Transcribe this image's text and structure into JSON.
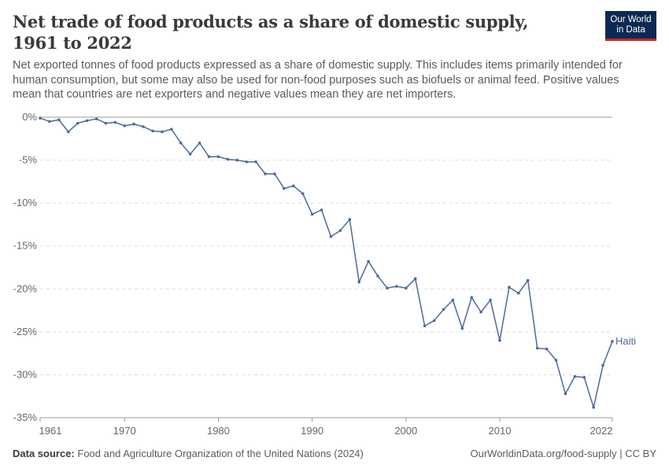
{
  "header": {
    "title": "Net trade of food products as a share of domestic supply, 1961 to 2022",
    "subtitle": "Net exported tonnes of food products expressed as a share of domestic supply. This includes items primarily intended for human consumption, but some may also be used for non-food purposes such as biofuels or animal feed. Positive values mean that countries are net exporters and negative values mean they are net importers.",
    "logo_line1": "Our World",
    "logo_line2": "in Data"
  },
  "footer": {
    "source_label": "Data source:",
    "source_text": "Food and Agriculture Organization of the United Nations (2024)",
    "right_text": "OurWorldinData.org/food-supply | CC BY"
  },
  "colors": {
    "series": "#4c6a9c",
    "logo_bg": "#0b2a53",
    "logo_bar": "#ce261e"
  },
  "chart_data": {
    "type": "line",
    "title": "Net trade of food products as a share of domestic supply, 1961 to 2022",
    "xlabel": "",
    "ylabel": "",
    "xlim": [
      1961,
      2022
    ],
    "ylim": [
      -35,
      0
    ],
    "x_ticks": [
      1961,
      1970,
      1980,
      1990,
      2000,
      2010,
      2022
    ],
    "y_ticks": [
      0,
      -5,
      -10,
      -15,
      -20,
      -25,
      -30,
      -35
    ],
    "y_tick_labels": [
      "0%",
      "-5%",
      "-10%",
      "-15%",
      "-20%",
      "-25%",
      "-30%",
      "-35%"
    ],
    "grid": "horizontal dashed",
    "series": [
      {
        "name": "Haiti",
        "x": [
          1961,
          1962,
          1963,
          1964,
          1965,
          1966,
          1967,
          1968,
          1969,
          1970,
          1971,
          1972,
          1973,
          1974,
          1975,
          1976,
          1977,
          1978,
          1979,
          1980,
          1981,
          1982,
          1983,
          1984,
          1985,
          1986,
          1987,
          1988,
          1989,
          1990,
          1991,
          1992,
          1993,
          1994,
          1995,
          1996,
          1997,
          1998,
          1999,
          2000,
          2001,
          2002,
          2003,
          2004,
          2005,
          2006,
          2007,
          2008,
          2009,
          2010,
          2011,
          2012,
          2013,
          2014,
          2015,
          2016,
          2017,
          2018,
          2019,
          2020,
          2021,
          2022
        ],
        "values": [
          -0.1,
          -0.5,
          -0.3,
          -1.7,
          -0.7,
          -0.4,
          -0.2,
          -0.7,
          -0.6,
          -1.0,
          -0.8,
          -1.1,
          -1.6,
          -1.7,
          -1.4,
          -3.0,
          -4.3,
          -3.0,
          -4.6,
          -4.6,
          -4.9,
          -5.0,
          -5.2,
          -5.2,
          -6.6,
          -6.6,
          -8.3,
          -8.0,
          -8.9,
          -11.3,
          -10.8,
          -13.9,
          -13.2,
          -11.9,
          -19.2,
          -16.8,
          -18.5,
          -19.9,
          -19.7,
          -19.9,
          -18.8,
          -24.3,
          -23.7,
          -22.4,
          -21.3,
          -24.6,
          -21.0,
          -22.7,
          -21.3,
          -26.0,
          -19.8,
          -20.5,
          -19.0,
          -26.9,
          -27.0,
          -28.3,
          -32.2,
          -30.2,
          -30.3,
          -33.8,
          -28.9,
          -26.1
        ]
      }
    ]
  }
}
